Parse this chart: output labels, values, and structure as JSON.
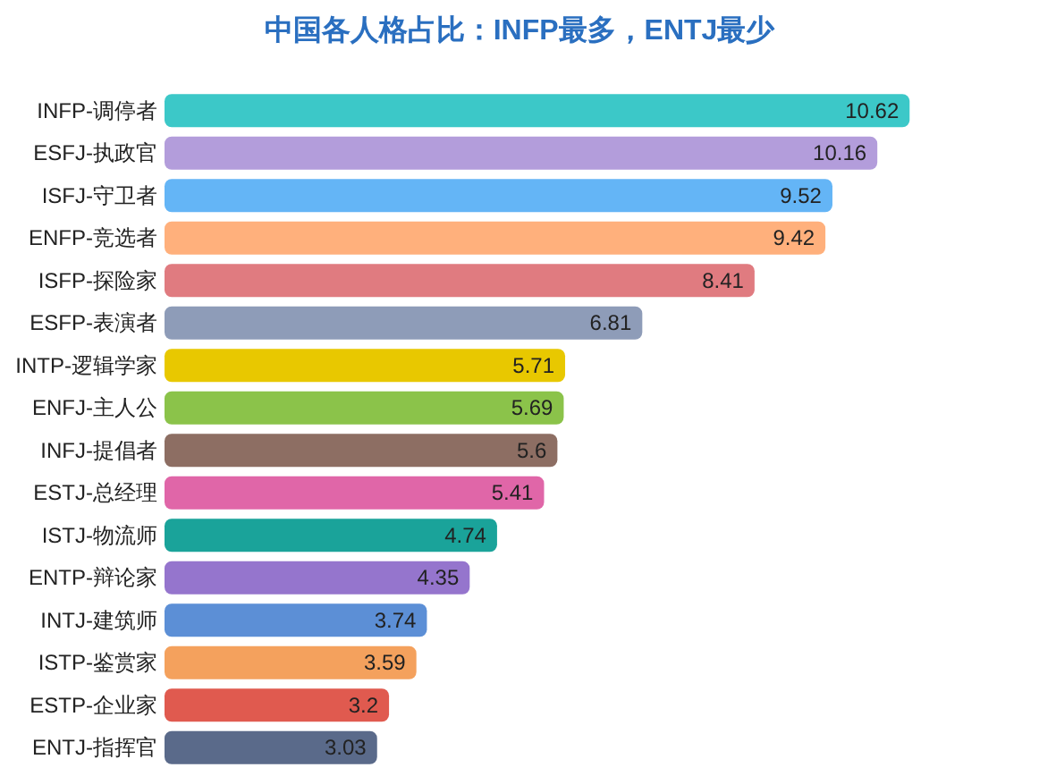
{
  "chart_data": {
    "type": "bar",
    "orientation": "horizontal",
    "title": "中国各人格占比：INFP最多，ENTJ最少",
    "categories": [
      "INFP-调停者",
      "ESFJ-执政官",
      "ISFJ-守卫者",
      "ENFP-竞选者",
      "ISFP-探险家",
      "ESFP-表演者",
      "INTP-逻辑学家",
      "ENFJ-主人公",
      "INFJ-提倡者",
      "ESTJ-总经理",
      "ISTJ-物流师",
      "ENTP-辩论家",
      "INTJ-建筑师",
      "ISTP-鉴赏家",
      "ESTP-企业家",
      "ENTJ-指挥官"
    ],
    "values": [
      10.62,
      10.16,
      9.52,
      9.42,
      8.41,
      6.81,
      5.71,
      5.69,
      5.6,
      5.41,
      4.74,
      4.35,
      3.74,
      3.59,
      3.2,
      3.03
    ],
    "colors": [
      "#3cc8c8",
      "#b39ddb",
      "#64b5f6",
      "#ffb07c",
      "#e07b80",
      "#8e9cb8",
      "#e8c800",
      "#8bc34a",
      "#8d6e63",
      "#e066a8",
      "#1aa39a",
      "#9575cd",
      "#5c8fd6",
      "#f4a15d",
      "#e05a4f",
      "#5a6a8a"
    ],
    "data_labels": true
  }
}
